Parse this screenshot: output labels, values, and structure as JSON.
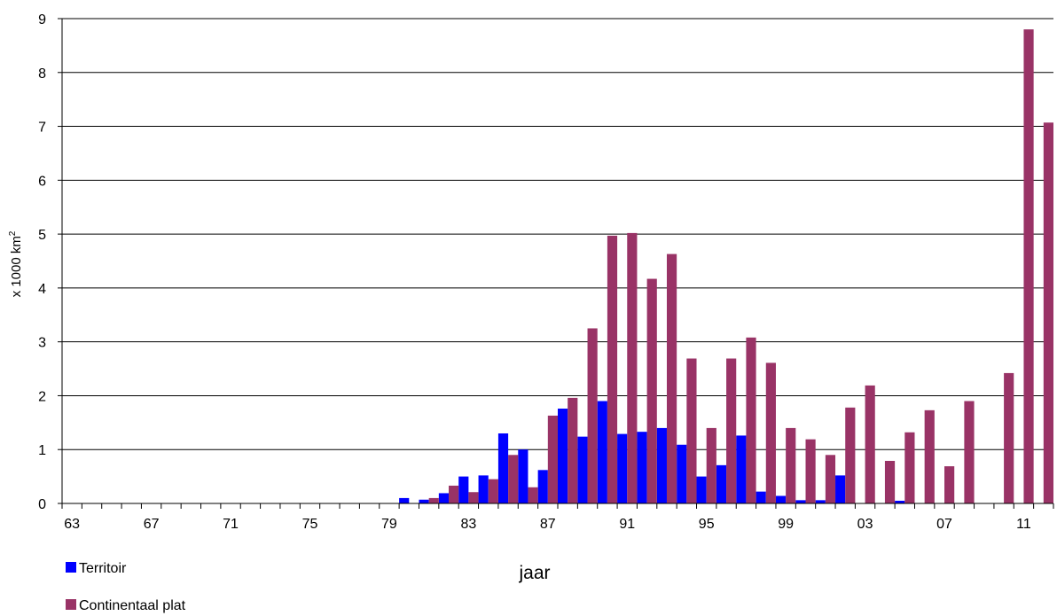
{
  "chart_data": {
    "type": "bar",
    "title": "",
    "xlabel": "jaar",
    "ylabel_prefix": "x 1000 km",
    "ylabel_superscript": "2",
    "ylim": [
      0,
      9
    ],
    "yticks": [
      "0",
      "1",
      "2",
      "3",
      "4",
      "5",
      "6",
      "7",
      "8",
      "9"
    ],
    "grid": true,
    "legend_position": "bottom-left",
    "categories": [
      "63",
      "64",
      "65",
      "66",
      "67",
      "68",
      "69",
      "70",
      "71",
      "72",
      "73",
      "74",
      "75",
      "76",
      "77",
      "78",
      "79",
      "80",
      "81",
      "82",
      "83",
      "84",
      "85",
      "86",
      "87",
      "88",
      "89",
      "90",
      "91",
      "92",
      "93",
      "94",
      "95",
      "96",
      "97",
      "98",
      "99",
      "00",
      "01",
      "02",
      "03",
      "04",
      "05",
      "06",
      "07",
      "08",
      "09",
      "10",
      "11",
      "12"
    ],
    "tick_labels": [
      "63",
      "",
      "",
      "",
      "67",
      "",
      "",
      "",
      "71",
      "",
      "",
      "",
      "75",
      "",
      "",
      "",
      "79",
      "",
      "",
      "",
      "83",
      "",
      "",
      "",
      "87",
      "",
      "",
      "",
      "91",
      "",
      "",
      "",
      "95",
      "",
      "",
      "",
      "99",
      "",
      "",
      "",
      "03",
      "",
      "",
      "",
      "07",
      "",
      "",
      "",
      "11",
      ""
    ],
    "series": [
      {
        "name": "Territoir",
        "color": "#0000ff",
        "values": [
          0,
          0,
          0,
          0,
          0,
          0,
          0,
          0,
          0,
          0,
          0,
          0,
          0,
          0,
          0,
          0,
          0,
          0.1,
          0.07,
          0.19,
          0.5,
          0.52,
          1.3,
          1.0,
          0.62,
          1.76,
          1.24,
          1.9,
          1.29,
          1.33,
          1.4,
          1.09,
          0.5,
          0.71,
          1.26,
          0.22,
          0.14,
          0.06,
          0.06,
          0.52,
          0,
          0,
          0.05,
          0,
          0,
          0,
          0,
          0,
          0,
          0
        ]
      },
      {
        "name": "Continentaal plat",
        "color": "#993366",
        "values": [
          0,
          0,
          0,
          0,
          0,
          0,
          0,
          0,
          0,
          0,
          0,
          0,
          0,
          0,
          0,
          0,
          0,
          0,
          0.1,
          0.33,
          0.21,
          0.45,
          0.9,
          0.3,
          1.63,
          1.96,
          3.25,
          4.97,
          5.02,
          4.17,
          4.63,
          2.69,
          1.4,
          2.69,
          3.08,
          2.61,
          1.4,
          1.19,
          0.9,
          1.78,
          2.19,
          0.79,
          1.32,
          1.73,
          0.69,
          1.9,
          0,
          2.42,
          8.8,
          7.07
        ]
      }
    ]
  }
}
